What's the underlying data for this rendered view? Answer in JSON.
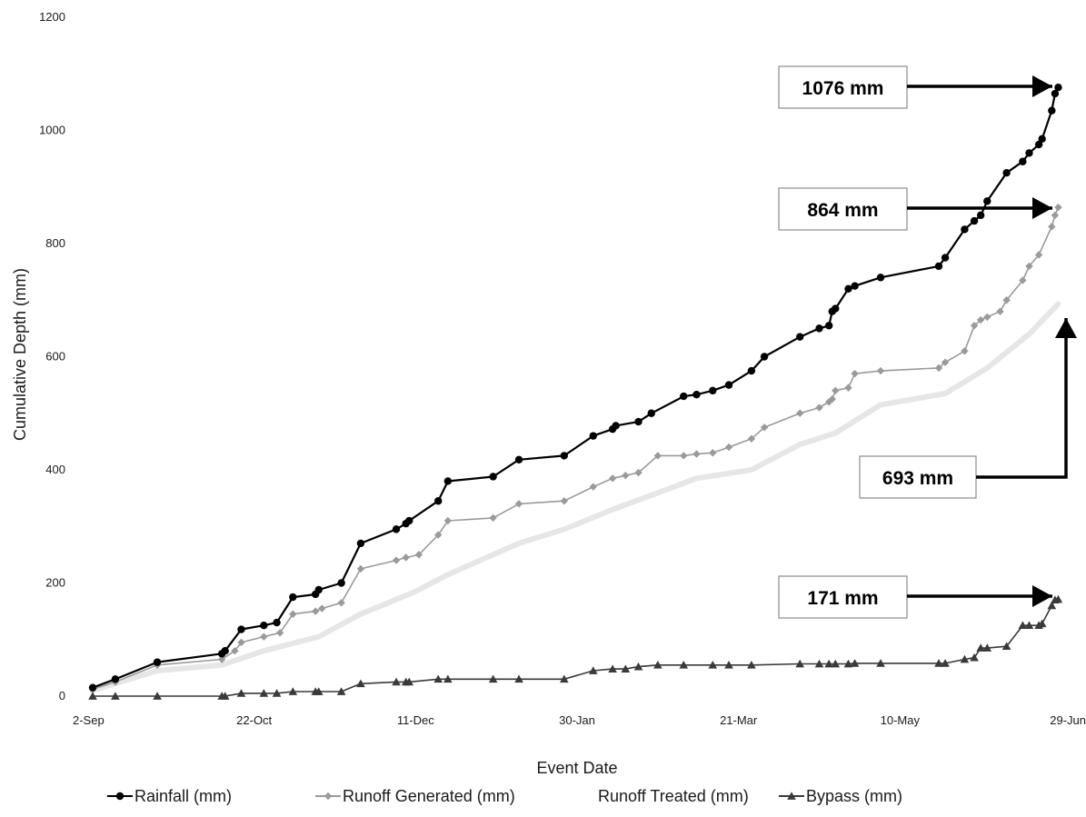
{
  "chart_data": {
    "type": "line",
    "xlabel": "Event Date",
    "ylabel": "Cumulative Depth (mm)",
    "x_tick_labels": [
      "2-Sep",
      "22-Oct",
      "11-Dec",
      "30-Jan",
      "21-Mar",
      "10-May",
      "29-Jun"
    ],
    "x_tick_days": [
      0,
      50,
      100,
      150,
      200,
      250,
      300
    ],
    "y_ticks": [
      "0",
      "200",
      "400",
      "600",
      "800",
      "1000",
      "1200"
    ],
    "ylim": [
      0,
      1200
    ],
    "grid": false,
    "legend_position": "bottom",
    "series": [
      {
        "name": "Rainfall (mm)",
        "color": "#000000",
        "marker": "circle",
        "x": [
          "2-Sep",
          "9-Sep",
          "22-Sep",
          "12-Oct",
          "13-Oct",
          "18-Oct",
          "25-Oct",
          "29-Oct",
          "3-Nov",
          "10-Nov",
          "11-Nov",
          "18-Nov",
          "24-Nov",
          "5-Dec",
          "8-Dec",
          "9-Dec",
          "18-Dec",
          "21-Dec",
          "4-Jan",
          "12-Jan",
          "26-Jan",
          "4-Feb",
          "10-Feb",
          "11-Feb",
          "18-Feb",
          "22-Feb",
          "4-Mar",
          "8-Mar",
          "13-Mar",
          "18-Mar",
          "25-Mar",
          "29-Mar",
          "9-Apr",
          "15-Apr",
          "18-Apr",
          "19-Apr",
          "20-Apr",
          "24-Apr",
          "26-Apr",
          "4-May",
          "22-May",
          "24-May",
          "30-May",
          "2-Jun",
          "4-Jun",
          "6-Jun",
          "12-Jun",
          "17-Jun",
          "19-Jun",
          "22-Jun",
          "23-Jun",
          "26-Jun",
          "27-Jun",
          "28-Jun"
        ],
        "y": [
          15,
          30,
          60,
          75,
          80,
          118,
          125,
          130,
          175,
          180,
          188,
          200,
          270,
          295,
          305,
          310,
          345,
          380,
          388,
          418,
          425,
          460,
          472,
          478,
          485,
          500,
          530,
          533,
          540,
          550,
          575,
          600,
          635,
          650,
          655,
          680,
          685,
          720,
          725,
          740,
          760,
          775,
          825,
          840,
          850,
          875,
          925,
          945,
          960,
          975,
          985,
          1035,
          1065,
          1076
        ]
      },
      {
        "name": "Runoff Generated (mm)",
        "color": "#9a9a9a",
        "marker": "diamond",
        "x": [
          "2-Sep",
          "9-Sep",
          "22-Sep",
          "12-Oct",
          "16-Oct",
          "18-Oct",
          "25-Oct",
          "30-Oct",
          "3-Nov",
          "10-Nov",
          "12-Nov",
          "18-Nov",
          "24-Nov",
          "5-Dec",
          "8-Dec",
          "12-Dec",
          "18-Dec",
          "21-Dec",
          "4-Jan",
          "12-Jan",
          "26-Jan",
          "4-Feb",
          "10-Feb",
          "14-Feb",
          "18-Feb",
          "24-Feb",
          "4-Mar",
          "8-Mar",
          "13-Mar",
          "18-Mar",
          "25-Mar",
          "29-Mar",
          "9-Apr",
          "15-Apr",
          "18-Apr",
          "19-Apr",
          "20-Apr",
          "24-Apr",
          "26-Apr",
          "4-May",
          "22-May",
          "24-May",
          "30-May",
          "2-Jun",
          "4-Jun",
          "6-Jun",
          "10-Jun",
          "12-Jun",
          "17-Jun",
          "19-Jun",
          "22-Jun",
          "26-Jun",
          "27-Jun",
          "28-Jun"
        ],
        "y": [
          12,
          25,
          55,
          65,
          80,
          95,
          105,
          112,
          145,
          150,
          155,
          165,
          225,
          240,
          245,
          250,
          285,
          310,
          315,
          340,
          345,
          370,
          385,
          390,
          395,
          425,
          425,
          428,
          430,
          440,
          455,
          475,
          500,
          510,
          520,
          525,
          540,
          545,
          570,
          575,
          580,
          590,
          610,
          655,
          665,
          670,
          680,
          700,
          735,
          760,
          780,
          830,
          850,
          864
        ]
      },
      {
        "name": "Runoff Treated (mm)",
        "color": "#e6e6e6",
        "marker": "none",
        "x": [
          "2-Sep",
          "22-Sep",
          "12-Oct",
          "25-Oct",
          "11-Nov",
          "24-Nov",
          "11-Dec",
          "21-Dec",
          "12-Jan",
          "26-Jan",
          "10-Feb",
          "22-Feb",
          "8-Mar",
          "25-Mar",
          "9-Apr",
          "20-Apr",
          "4-May",
          "24-May",
          "6-Jun",
          "19-Jun",
          "28-Jun"
        ],
        "y": [
          10,
          45,
          55,
          80,
          105,
          145,
          185,
          215,
          270,
          295,
          330,
          355,
          385,
          400,
          445,
          465,
          515,
          535,
          580,
          640,
          693
        ]
      },
      {
        "name": "Bypass (mm)",
        "color": "#3a3a3a",
        "marker": "triangle",
        "x": [
          "2-Sep",
          "9-Sep",
          "22-Sep",
          "12-Oct",
          "13-Oct",
          "18-Oct",
          "25-Oct",
          "29-Oct",
          "3-Nov",
          "10-Nov",
          "11-Nov",
          "18-Nov",
          "24-Nov",
          "5-Dec",
          "8-Dec",
          "9-Dec",
          "18-Dec",
          "21-Dec",
          "4-Jan",
          "12-Jan",
          "26-Jan",
          "4-Feb",
          "10-Feb",
          "14-Feb",
          "18-Feb",
          "24-Feb",
          "4-Mar",
          "13-Mar",
          "18-Mar",
          "25-Mar",
          "9-Apr",
          "15-Apr",
          "18-Apr",
          "20-Apr",
          "24-Apr",
          "26-Apr",
          "4-May",
          "22-May",
          "24-May",
          "30-May",
          "2-Jun",
          "4-Jun",
          "6-Jun",
          "12-Jun",
          "17-Jun",
          "19-Jun",
          "22-Jun",
          "23-Jun",
          "26-Jun",
          "27-Jun",
          "28-Jun"
        ],
        "y": [
          0,
          0,
          0,
          0,
          0,
          5,
          5,
          5,
          8,
          8,
          8,
          8,
          22,
          25,
          25,
          25,
          30,
          30,
          30,
          30,
          30,
          45,
          48,
          48,
          52,
          55,
          55,
          55,
          55,
          55,
          57,
          57,
          57,
          57,
          57,
          58,
          58,
          58,
          58,
          65,
          68,
          85,
          85,
          88,
          125,
          125,
          125,
          128,
          160,
          170,
          171
        ]
      }
    ],
    "annotations": [
      {
        "label": "1076 mm",
        "target_date": "28-Jun",
        "target_value": 1076
      },
      {
        "label": "864 mm",
        "target_date": "28-Jun",
        "target_value": 864
      },
      {
        "label": "693 mm",
        "target_date": "28-Jun",
        "target_value": 693
      },
      {
        "label": "171 mm",
        "target_date": "28-Jun",
        "target_value": 171
      }
    ]
  }
}
